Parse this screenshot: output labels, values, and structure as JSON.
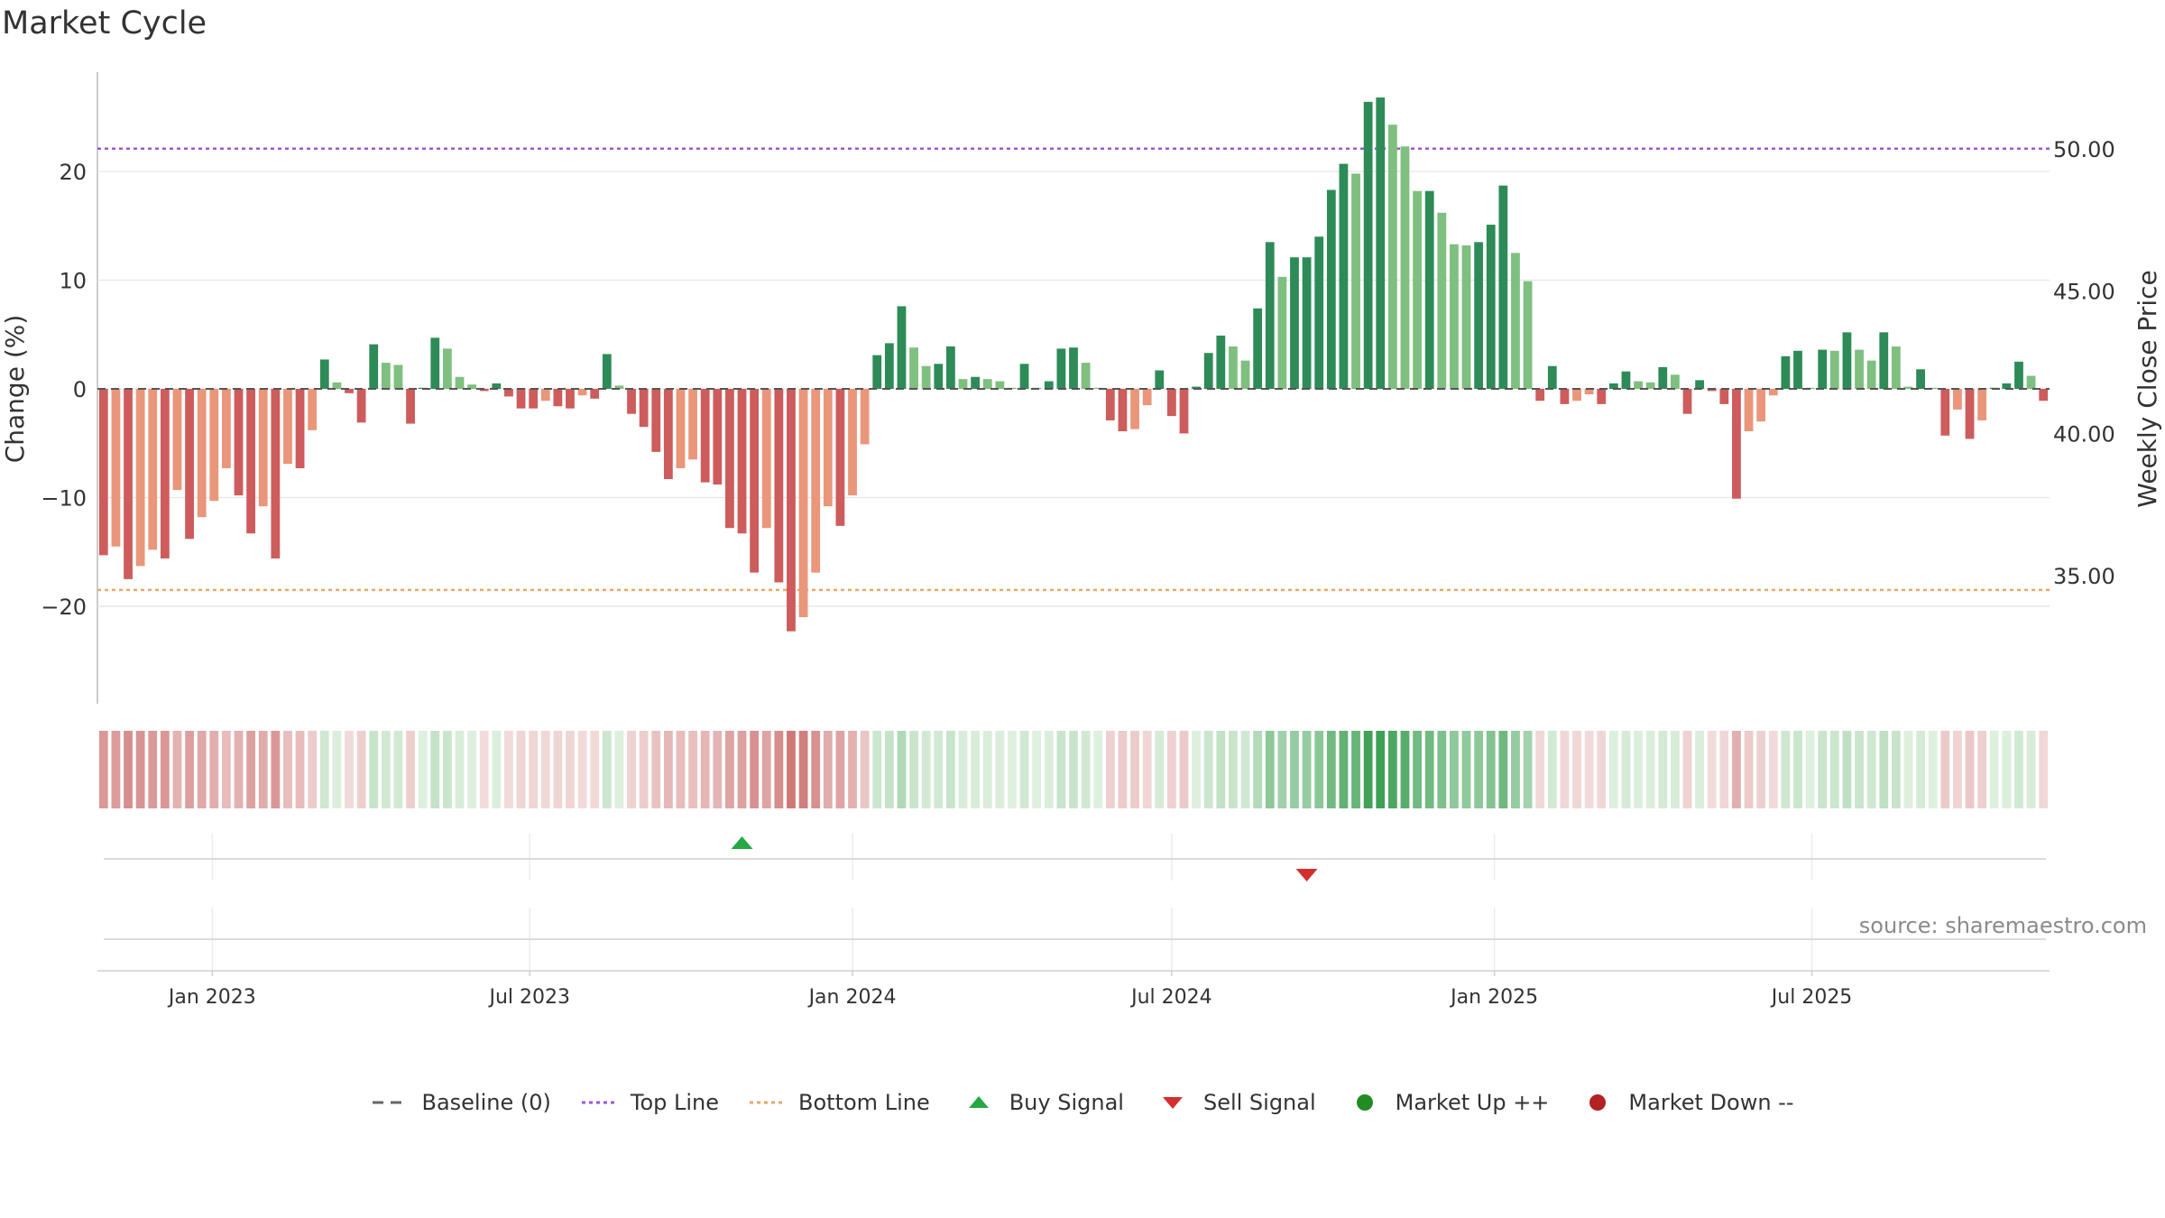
{
  "chart_data": {
    "type": "bar",
    "title": "Market Cycle",
    "ylabel_left": "Change (%)",
    "ylabel_right": "Weekly Close Price",
    "source": "source: sharemaestro.com",
    "left_ticks": [
      "20",
      "10",
      "0",
      "−10",
      "−20"
    ],
    "left_tick_values": [
      20,
      10,
      0,
      -10,
      -20
    ],
    "right_ticks": [
      "50.00",
      "45.00",
      "40.00",
      "35.00"
    ],
    "right_tick_values": [
      50,
      45,
      40,
      35
    ],
    "ylim_left": [
      -29,
      29
    ],
    "date_ticks": [
      "Jan 2023",
      "Jul 2023",
      "Jan 2024",
      "Jul 2024",
      "Jan 2025",
      "Jul 2025"
    ],
    "date_tick_values": [
      "2023-01-01",
      "2023-07-01",
      "2024-01-01",
      "2024-07-01",
      "2025-01-01",
      "2025-07-01"
    ],
    "first_week": "2022-10-31",
    "top_line": 22.1,
    "bottom_line": -18.5,
    "baseline": 0,
    "weekly_change": [
      -15.3,
      -14.5,
      -17.5,
      -16.3,
      -14.8,
      -15.6,
      -9.3,
      -13.8,
      -11.8,
      -10.3,
      -7.3,
      -9.8,
      -13.3,
      -10.8,
      -15.6,
      -6.9,
      -7.3,
      -3.8,
      2.7,
      0.6,
      -0.4,
      -3.1,
      4.1,
      2.4,
      2.2,
      -3.2,
      0.1,
      4.7,
      3.7,
      1.1,
      0.4,
      -0.2,
      0.5,
      -0.7,
      -1.8,
      -1.8,
      -1.1,
      -1.6,
      -1.8,
      -0.6,
      -0.9,
      3.2,
      0.3,
      -2.3,
      -3.5,
      -5.8,
      -8.3,
      -7.3,
      -6.5,
      -8.6,
      -8.8,
      -12.8,
      -13.3,
      -16.9,
      -12.8,
      -17.8,
      -22.3,
      -21.0,
      -16.9,
      -10.8,
      -12.6,
      -9.8,
      -5.1,
      3.1,
      4.2,
      7.6,
      3.8,
      2.1,
      2.3,
      3.9,
      0.9,
      1.1,
      0.9,
      0.7,
      0.1,
      2.3,
      0.1,
      0.7,
      3.7,
      3.8,
      2.4,
      0.1,
      -2.9,
      -3.9,
      -3.7,
      -1.5,
      1.7,
      -2.5,
      -4.1,
      0.2,
      3.3,
      4.9,
      3.9,
      2.6,
      7.4,
      13.5,
      10.3,
      12.1,
      12.1,
      14.0,
      18.3,
      20.7,
      19.8,
      26.4,
      26.8,
      24.3,
      22.3,
      18.2,
      18.2,
      16.2,
      13.3,
      13.2,
      13.5,
      15.1,
      18.7,
      12.5,
      9.9,
      -1.1,
      2.1,
      -1.4,
      -1.1,
      -0.5,
      -1.4,
      0.5,
      1.6,
      0.7,
      0.6,
      2.0,
      1.3,
      -2.3,
      0.8,
      -0.2,
      -1.4,
      -10.1,
      -3.9,
      -3.0,
      -0.6,
      3.0,
      3.5,
      0.1,
      3.6,
      3.5,
      5.2,
      3.6,
      2.6,
      5.2,
      3.9,
      0.2,
      1.8,
      0.1,
      -4.3,
      -1.9,
      -4.6,
      -2.9,
      0.1,
      0.5,
      2.5,
      1.2,
      -1.1
    ],
    "buy_signal_dates": [
      "2023-10-30"
    ],
    "sell_signal_dates": [
      "2024-09-16"
    ],
    "colors": {
      "up_strong": "#2e8b57",
      "up_weak": "#7fbf7f",
      "down_strong": "#cd5c5c",
      "down_weak": "#e9967a",
      "top_line": "#9b59d0",
      "bottom_line": "#e8a86a",
      "baseline": "#555555",
      "buy": "#27a844",
      "sell": "#d32f2f",
      "market_up": "#228b22",
      "market_down": "#b22222"
    },
    "legend": [
      {
        "label": "Baseline (0)",
        "symbol": "dash",
        "color": "#666666"
      },
      {
        "label": "Top Line",
        "symbol": "dotted",
        "color": "#9b59d0"
      },
      {
        "label": "Bottom Line",
        "symbol": "dotted",
        "color": "#e8a86a"
      },
      {
        "label": "Buy Signal",
        "symbol": "triangle-up",
        "color": "#27a844"
      },
      {
        "label": "Sell Signal",
        "symbol": "triangle-down",
        "color": "#d32f2f"
      },
      {
        "label": "Market Up ++",
        "symbol": "circle",
        "color": "#228b22"
      },
      {
        "label": "Market Down --",
        "symbol": "circle",
        "color": "#b22222"
      }
    ]
  }
}
